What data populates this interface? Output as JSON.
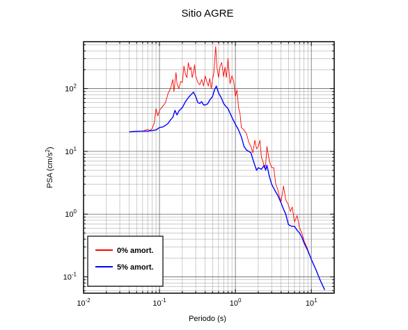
{
  "chart_data": {
    "type": "line",
    "title": "Sitio AGRE",
    "xlabel": "Periodo (s)",
    "ylabel_base": "PSA (cm/s",
    "ylabel_sup": "2",
    "ylabel_tail": ")",
    "x_scale": "log",
    "y_scale": "log",
    "xlim": [
      0.01,
      20
    ],
    "ylim": [
      0.055,
      560
    ],
    "grid": true,
    "legend_position": "bottom-left",
    "x_ticks": [
      {
        "base": "10",
        "exp": "-2",
        "value": 0.01
      },
      {
        "base": "10",
        "exp": "-1",
        "value": 0.1
      },
      {
        "base": "10",
        "exp": "0",
        "value": 1
      },
      {
        "base": "10",
        "exp": "1",
        "value": 10
      }
    ],
    "y_ticks": [
      {
        "base": "10",
        "exp": "-1",
        "value": 0.1
      },
      {
        "base": "10",
        "exp": "0",
        "value": 1
      },
      {
        "base": "10",
        "exp": "1",
        "value": 10
      },
      {
        "base": "10",
        "exp": "2",
        "value": 100
      }
    ],
    "series": [
      {
        "name": "0% amort.",
        "color": "#ff0000",
        "points": [
          [
            0.04,
            20.5
          ],
          [
            0.05,
            21
          ],
          [
            0.06,
            21
          ],
          [
            0.07,
            22.5
          ],
          [
            0.075,
            21.5
          ],
          [
            0.08,
            23
          ],
          [
            0.085,
            28
          ],
          [
            0.09,
            48
          ],
          [
            0.095,
            37
          ],
          [
            0.1,
            45
          ],
          [
            0.11,
            52
          ],
          [
            0.12,
            60
          ],
          [
            0.13,
            85
          ],
          [
            0.14,
            100
          ],
          [
            0.15,
            140
          ],
          [
            0.155,
            90
          ],
          [
            0.165,
            180
          ],
          [
            0.17,
            120
          ],
          [
            0.18,
            100
          ],
          [
            0.19,
            130
          ],
          [
            0.2,
            125
          ],
          [
            0.21,
            230
          ],
          [
            0.22,
            170
          ],
          [
            0.23,
            150
          ],
          [
            0.24,
            260
          ],
          [
            0.25,
            200
          ],
          [
            0.26,
            220
          ],
          [
            0.27,
            150
          ],
          [
            0.28,
            180
          ],
          [
            0.29,
            240
          ],
          [
            0.3,
            160
          ],
          [
            0.32,
            125
          ],
          [
            0.34,
            115
          ],
          [
            0.36,
            140
          ],
          [
            0.38,
            110
          ],
          [
            0.4,
            160
          ],
          [
            0.42,
            130
          ],
          [
            0.44,
            110
          ],
          [
            0.46,
            145
          ],
          [
            0.48,
            100
          ],
          [
            0.5,
            140
          ],
          [
            0.52,
            180
          ],
          [
            0.55,
            470
          ],
          [
            0.57,
            220
          ],
          [
            0.6,
            150
          ],
          [
            0.63,
            230
          ],
          [
            0.66,
            260
          ],
          [
            0.7,
            155
          ],
          [
            0.73,
            220
          ],
          [
            0.76,
            150
          ],
          [
            0.8,
            300
          ],
          [
            0.85,
            120
          ],
          [
            0.9,
            160
          ],
          [
            0.95,
            130
          ],
          [
            1.0,
            75
          ],
          [
            1.05,
            95
          ],
          [
            1.1,
            50
          ],
          [
            1.15,
            40
          ],
          [
            1.2,
            24
          ],
          [
            1.3,
            22
          ],
          [
            1.4,
            19
          ],
          [
            1.5,
            14
          ],
          [
            1.6,
            12
          ],
          [
            1.7,
            9.5
          ],
          [
            1.8,
            15
          ],
          [
            1.9,
            11
          ],
          [
            2.0,
            12
          ],
          [
            2.1,
            15
          ],
          [
            2.2,
            8
          ],
          [
            2.3,
            7
          ],
          [
            2.4,
            5.5
          ],
          [
            2.5,
            6
          ],
          [
            2.6,
            12
          ],
          [
            2.8,
            7
          ],
          [
            3.0,
            5.5
          ],
          [
            3.2,
            5.5
          ],
          [
            3.4,
            3
          ],
          [
            3.6,
            2.5
          ],
          [
            3.8,
            1.9
          ],
          [
            4.0,
            1.6
          ],
          [
            4.3,
            2.8
          ],
          [
            4.6,
            1.7
          ],
          [
            5.0,
            1.4
          ],
          [
            5.3,
            1.1
          ],
          [
            5.6,
            1.3
          ],
          [
            6.0,
            0.75
          ],
          [
            6.5,
            0.95
          ],
          [
            7.0,
            0.6
          ],
          [
            7.5,
            0.5
          ],
          [
            8.0,
            0.38
          ],
          [
            9.0,
            0.27
          ],
          [
            10.0,
            0.19
          ],
          [
            11.5,
            0.13
          ],
          [
            13.0,
            0.09
          ],
          [
            15.0,
            0.062
          ]
        ]
      },
      {
        "name": "5% amort.",
        "color": "#0000ff",
        "points": [
          [
            0.04,
            20.5
          ],
          [
            0.05,
            20.8
          ],
          [
            0.06,
            21
          ],
          [
            0.07,
            21
          ],
          [
            0.08,
            21.5
          ],
          [
            0.09,
            22
          ],
          [
            0.1,
            24
          ],
          [
            0.11,
            24.5
          ],
          [
            0.12,
            26
          ],
          [
            0.13,
            28
          ],
          [
            0.14,
            32
          ],
          [
            0.15,
            35
          ],
          [
            0.16,
            45
          ],
          [
            0.17,
            38
          ],
          [
            0.18,
            44
          ],
          [
            0.2,
            50
          ],
          [
            0.22,
            62
          ],
          [
            0.24,
            72
          ],
          [
            0.26,
            80
          ],
          [
            0.28,
            88
          ],
          [
            0.3,
            75
          ],
          [
            0.32,
            60
          ],
          [
            0.34,
            58
          ],
          [
            0.36,
            62
          ],
          [
            0.38,
            55
          ],
          [
            0.4,
            55
          ],
          [
            0.43,
            57
          ],
          [
            0.46,
            66
          ],
          [
            0.5,
            75
          ],
          [
            0.53,
            95
          ],
          [
            0.56,
            110
          ],
          [
            0.6,
            85
          ],
          [
            0.65,
            72
          ],
          [
            0.7,
            58
          ],
          [
            0.75,
            52
          ],
          [
            0.8,
            48
          ],
          [
            0.9,
            35
          ],
          [
            1.0,
            27
          ],
          [
            1.1,
            22
          ],
          [
            1.2,
            17
          ],
          [
            1.3,
            12
          ],
          [
            1.4,
            10.5
          ],
          [
            1.5,
            10
          ],
          [
            1.6,
            9.5
          ],
          [
            1.7,
            7.5
          ],
          [
            1.8,
            6
          ],
          [
            1.9,
            5
          ],
          [
            2.0,
            5.5
          ],
          [
            2.2,
            5.2
          ],
          [
            2.4,
            6
          ],
          [
            2.5,
            5
          ],
          [
            2.6,
            6
          ],
          [
            2.8,
            4
          ],
          [
            3.0,
            3
          ],
          [
            3.3,
            2.4
          ],
          [
            3.6,
            2
          ],
          [
            4.0,
            1.5
          ],
          [
            4.3,
            1.2
          ],
          [
            4.6,
            1.0
          ],
          [
            5.0,
            0.68
          ],
          [
            5.5,
            0.64
          ],
          [
            6.0,
            0.64
          ],
          [
            6.5,
            0.55
          ],
          [
            7.0,
            0.5
          ],
          [
            7.5,
            0.43
          ],
          [
            8.0,
            0.35
          ],
          [
            9.0,
            0.26
          ],
          [
            10.0,
            0.19
          ],
          [
            11.5,
            0.13
          ],
          [
            13.0,
            0.09
          ],
          [
            15.0,
            0.062
          ]
        ]
      }
    ]
  }
}
